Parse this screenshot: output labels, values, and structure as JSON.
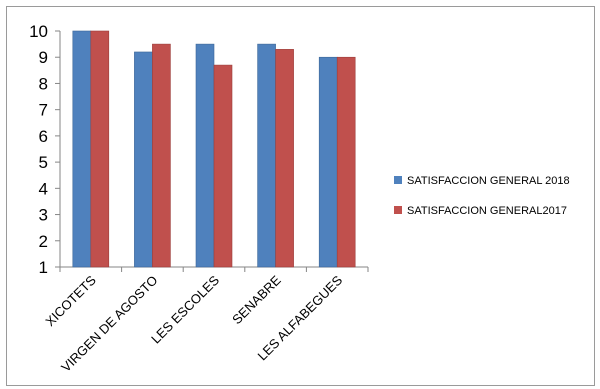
{
  "chart_data": {
    "type": "bar",
    "categories": [
      "XICOTETS",
      "VIRGEN DE AGOSTO",
      "LES ESCOLES",
      "SENABRE",
      "LES ALFABEGUES"
    ],
    "series": [
      {
        "name": "SATISFACCION GENERAL 2018",
        "values": [
          10,
          9.2,
          9.5,
          9.5,
          9.0
        ],
        "color": "#4F81BD"
      },
      {
        "name": "SATISFACCION GENERAL2017",
        "values": [
          10,
          9.5,
          8.7,
          9.3,
          9.0
        ],
        "color": "#C0504D"
      }
    ],
    "yticks": [
      1,
      2,
      3,
      4,
      5,
      6,
      7,
      8,
      9,
      10
    ],
    "ylim": [
      1,
      10
    ],
    "grid": false,
    "legend_position": "right",
    "title": "",
    "xlabel": "",
    "ylabel": ""
  }
}
